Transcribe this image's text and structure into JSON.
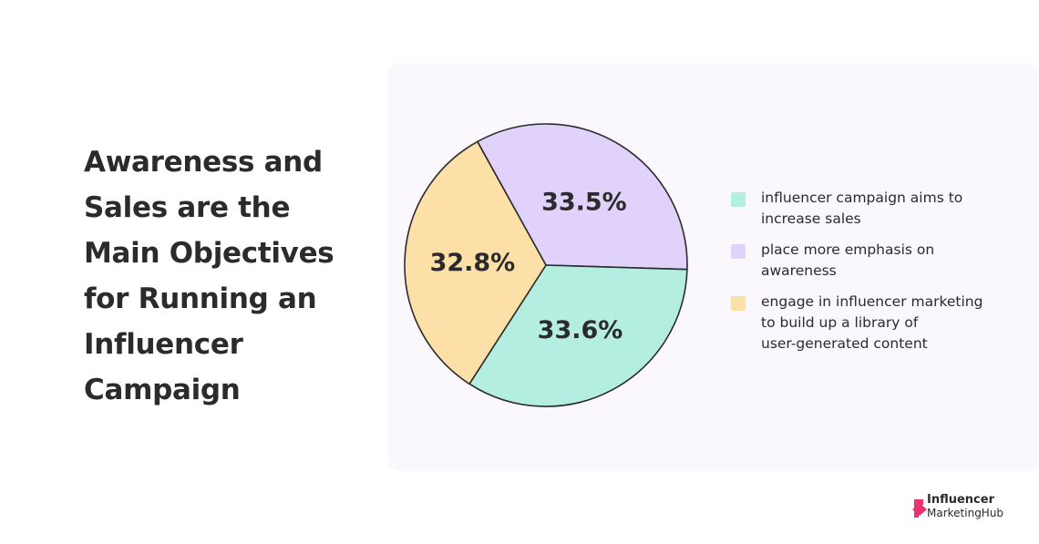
{
  "headline": {
    "lines": [
      "Awareness and",
      "Sales are the",
      "Main Objectives",
      "for Running an",
      "Influencer",
      "Campaign"
    ]
  },
  "chart_data": {
    "type": "pie",
    "title": "",
    "slices": [
      {
        "value": 33.5,
        "data_label": "33.5%",
        "legend_lines": [
          "place more emphasis on",
          "awareness"
        ],
        "color": "#e0d2fb"
      },
      {
        "value": 33.6,
        "data_label": "33.6%",
        "legend_lines": [
          "influencer campaign aims to",
          "increase sales"
        ],
        "color": "#b3eee0"
      },
      {
        "value": 32.8,
        "data_label": "32.8%",
        "legend_lines": [
          "engage in influencer marketing",
          "to build up a library of",
          "user-generated content"
        ],
        "color": "#fde0a8"
      }
    ],
    "legend_order": [
      1,
      0,
      2
    ],
    "legend_position": "right",
    "outline_color": "#2b2b2b"
  },
  "brand": {
    "line1": "Influencer",
    "line2": "MarketingHub",
    "accent_color": "#e8336b"
  }
}
